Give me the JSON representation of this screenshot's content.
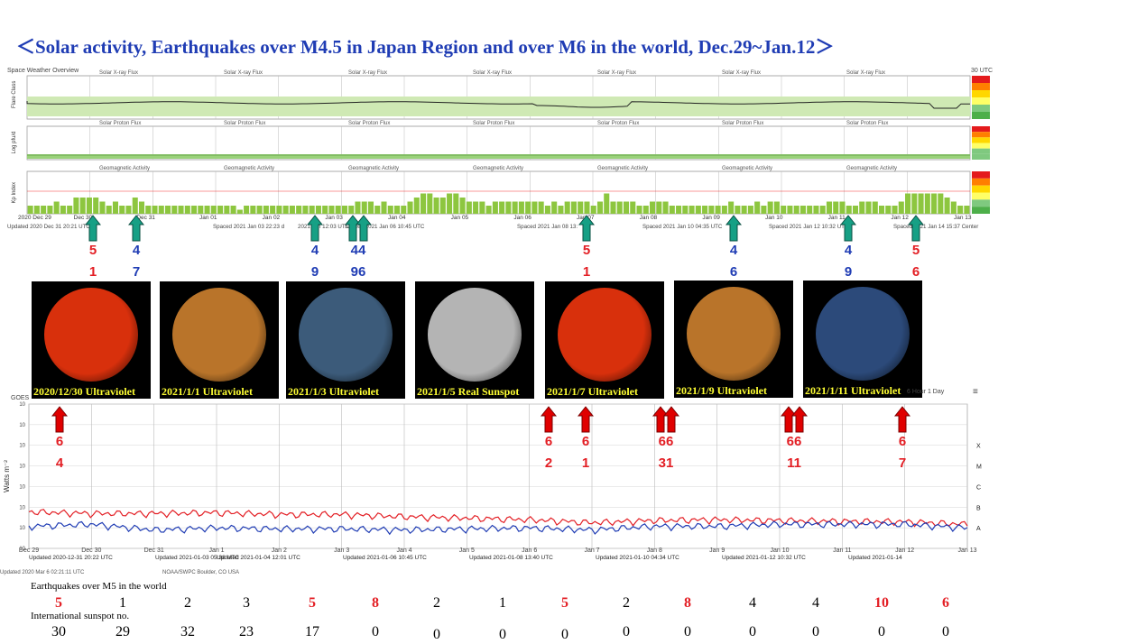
{
  "title": "＜Solar activity, Earthquakes over M4.5 in Japan Region and over M6 in the world,   Dec.29~Jan.12＞",
  "swpc_panel": {
    "header_left": "Space Weather Overview",
    "header_right": "30 UTC",
    "row_labels": [
      "Flare Class",
      "Log pfu/d",
      "Kp Index"
    ],
    "panel_titles": [
      "Solar X-ray Flux",
      "Solar Proton Flux",
      "Geomagnetic Activity"
    ],
    "date_ticks": [
      "2020 Dec 29",
      "Dec 30",
      "Dec 31",
      "Jan 01",
      "Jan 02",
      "Jan 03",
      "Jan 04",
      "Jan 05",
      "Jan 06",
      "Jan 07",
      "Jan 08",
      "Jan 09",
      "Jan 10",
      "Jan 11",
      "Jan 12",
      "Jan 13"
    ],
    "updated_texts": [
      "Updated 2020 Dec 31 20:21 UTC",
      "Spaced 2021 Jan 03 22:23 d",
      "2021 Jan 12:03 UTC",
      "Spaced 2021 Jan 06 10:45 UTC",
      "Spaced 2021 Jan 08 13:",
      "Spaced 2021 Jan 10 04:35 UTC",
      "Spaced 2021 Jan 12 10:32 UTC",
      "Spaced 2021 Jan 14 15:37 Center"
    ]
  },
  "japan_quakes": [
    {
      "m": "5",
      "count": "1",
      "color": "red"
    },
    {
      "m": "4",
      "count": "7",
      "color": "blue"
    },
    {
      "m": "4",
      "count": "9",
      "color": "blue"
    },
    {
      "m": "44",
      "count": "96",
      "color": "blue"
    },
    {
      "m": "5",
      "count": "1",
      "color": "red"
    },
    {
      "m": "4",
      "count": "6",
      "color": "blue"
    },
    {
      "m": "4",
      "count": "9",
      "color": "blue"
    },
    {
      "m": "5",
      "count": "6",
      "color": "red"
    }
  ],
  "sun_images": [
    {
      "caption": "2020/12/30 Ultraviolet",
      "color": "#d8300c"
    },
    {
      "caption": "2021/1/1 Ultraviolet",
      "color": "#b9742a"
    },
    {
      "caption": "2021/1/3 Ultraviolet",
      "color": "#3c5b7a"
    },
    {
      "caption": "2021/1/5 Real Sunspot",
      "color": "#b4b4b4"
    },
    {
      "caption": "2021/1/7 Ultraviolet",
      "color": "#d8300c"
    },
    {
      "caption": "2021/1/9 Ultraviolet",
      "color": "#b9742a"
    },
    {
      "caption": "2021/1/11 Ultraviolet",
      "color": "#2c4a7a"
    }
  ],
  "world_quakes": [
    {
      "m": "6",
      "count": "4"
    },
    {
      "m": "6",
      "count": "2"
    },
    {
      "m": "6",
      "count": "1"
    },
    {
      "m": "66",
      "count": "31"
    },
    {
      "m": "66",
      "count": "11"
    },
    {
      "m": "6",
      "count": "7"
    }
  ],
  "xray_panel": {
    "header_left": "GOES",
    "header_right": "6 Hour  1 Day",
    "ylabel": "Watts m⁻²",
    "classes": [
      "X",
      "M",
      "C",
      "B",
      "A"
    ],
    "date_ticks": [
      "Dec 29",
      "Dec 30",
      "Dec 31",
      "Jan 1",
      "Jan 2",
      "Jan 3",
      "Jan 4",
      "Jan 5",
      "Jan 6",
      "Jan 7",
      "Jan 8",
      "Jan 9",
      "Jan 10",
      "Jan 11",
      "Jan 12",
      "Jan 13"
    ],
    "updated": [
      "Updated 2020-12-31 20:22 UTC",
      "Updated 2021-01-03 05:38 UTC",
      "Updated 2021-01-04 12:01 UTC",
      "Updated 2021-01-06 10:45 UTC",
      "Updated 2021-01-08 13:40 UTC",
      "Updated 2021-01-10 04:34 UTC",
      "Updated 2021-01-12 10:32 UTC",
      "Updated 2021-01-14"
    ],
    "footer_left": "Updated 2020 Mar  6 02:21:11 UTC",
    "footer_right": "NOAA/SWPC Boulder, CO USA"
  },
  "bottom": {
    "label1": "Earthquakes over M5 in the world",
    "label2": "International sunspot no.",
    "world_m5": [
      {
        "v": "5",
        "c": "red"
      },
      {
        "v": "1",
        "c": "black"
      },
      {
        "v": "2",
        "c": "black"
      },
      {
        "v": "3",
        "c": "black"
      },
      {
        "v": "5",
        "c": "red"
      },
      {
        "v": "8",
        "c": "red"
      },
      {
        "v": "2",
        "c": "black"
      },
      {
        "v": "1",
        "c": "black"
      },
      {
        "v": "5",
        "c": "red"
      },
      {
        "v": "2",
        "c": "black"
      },
      {
        "v": "8",
        "c": "red"
      },
      {
        "v": "4",
        "c": "black"
      },
      {
        "v": "4",
        "c": "black"
      },
      {
        "v": "10",
        "c": "red"
      },
      {
        "v": "6",
        "c": "red"
      }
    ],
    "sunspot": [
      "30",
      "29",
      "32",
      "23",
      "17",
      "0",
      "0",
      "0",
      "0",
      "0",
      "0",
      "0",
      "0",
      "0",
      "0"
    ]
  },
  "chart_data": {
    "type": "line",
    "x": [
      "Dec 29",
      "Dec 30",
      "Dec 31",
      "Jan 1",
      "Jan 2",
      "Jan 3",
      "Jan 4",
      "Jan 5",
      "Jan 6",
      "Jan 7",
      "Jan 8",
      "Jan 9",
      "Jan 10",
      "Jan 11",
      "Jan 12",
      "Jan 13"
    ],
    "series": [
      {
        "values": [
          6e-08,
          5e-08,
          5e-08,
          5.5e-08,
          4.5e-08,
          4.5e-08,
          3.5e-08,
          3e-08,
          2.5e-08,
          1.8e-08,
          2.3e-08,
          2.5e-08,
          2.3e-08,
          2.1e-08,
          2e-08,
          1.5e-08
        ],
        "color": "#e31e24"
      },
      {
        "values": [
          1.2e-08,
          1.5e-08,
          8e-09,
          1e-08,
          9e-09,
          9e-09,
          8e-09,
          9e-09,
          1e-08,
          8e-09,
          1.2e-08,
          1.2e-08,
          1.5e-08,
          1.5e-08,
          1.5e-08,
          1e-08
        ],
        "color": "#1f3cb4"
      }
    ],
    "yscale": "log",
    "ylim": [
      1e-09,
      0.01
    ],
    "ylabel": "Watts m⁻²",
    "class_labels": [
      "X",
      "M",
      "C",
      "B",
      "A"
    ]
  }
}
